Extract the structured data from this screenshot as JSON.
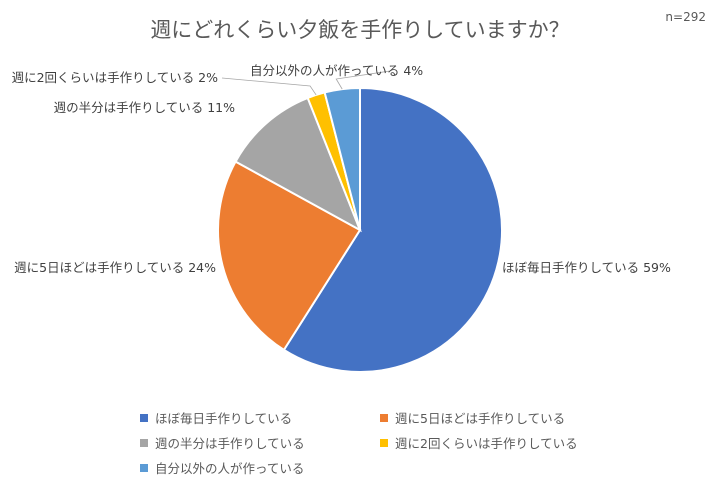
{
  "chart_data": {
    "type": "pie",
    "title": "週にどれくらい夕飯を手作りしていますか？",
    "sample_size": "n=292",
    "slices": [
      {
        "label": "ほぼ毎日手作りしている",
        "value": 59,
        "value_label": "59%",
        "color": "#4472C4"
      },
      {
        "label": "週に5日ほどは手作りしている",
        "value": 24,
        "value_label": "24%",
        "color": "#ED7D31"
      },
      {
        "label": "週の半分は手作りしている",
        "value": 11,
        "value_label": "11%",
        "color": "#A5A5A5"
      },
      {
        "label": "週に2回くらいは手作りしている",
        "value": 2,
        "value_label": "2%",
        "color": "#FFC000"
      },
      {
        "label": "自分以外の人が作っている",
        "value": 4,
        "value_label": "4%",
        "color": "#5B9BD5"
      }
    ],
    "legend_position": "bottom"
  }
}
